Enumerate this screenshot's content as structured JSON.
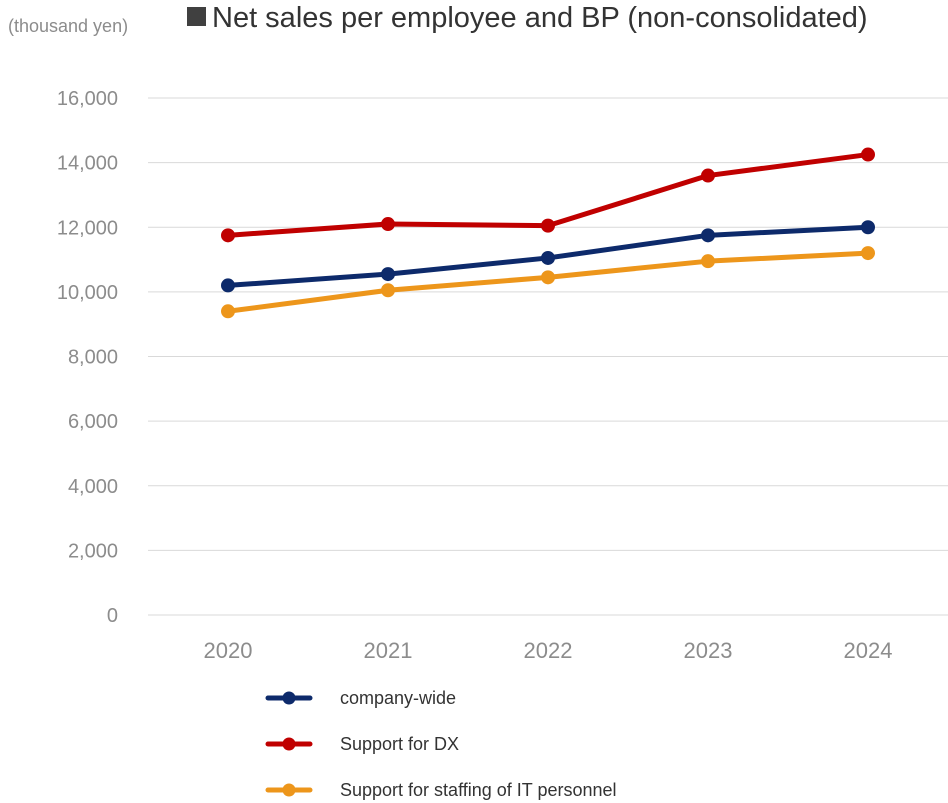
{
  "chart_data": {
    "type": "line",
    "title": "Net sales per employee and BP (non-consolidated)",
    "unit_label": "(thousand yen)",
    "xlabel": "",
    "ylabel": "",
    "categories": [
      "2020",
      "2021",
      "2022",
      "2023",
      "2024"
    ],
    "ylim": [
      0,
      16000
    ],
    "yticks": [
      0,
      2000,
      4000,
      6000,
      8000,
      10000,
      12000,
      14000,
      16000
    ],
    "ytick_labels": [
      "0",
      "2,000",
      "4,000",
      "6,000",
      "8,000",
      "10,000",
      "12,000",
      "14,000",
      "16,000"
    ],
    "grid": "horizontal",
    "legend_position": "bottom",
    "series": [
      {
        "name": "company-wide",
        "color": "#0d2a6b",
        "values": [
          10200,
          10550,
          11050,
          11750,
          12000
        ]
      },
      {
        "name": "Support for DX",
        "color": "#c00000",
        "values": [
          11750,
          12100,
          12050,
          13600,
          14250
        ]
      },
      {
        "name": "Support for staffing of IT personnel",
        "color": "#ed961b",
        "values": [
          9400,
          10050,
          10450,
          10950,
          11200
        ]
      }
    ]
  }
}
